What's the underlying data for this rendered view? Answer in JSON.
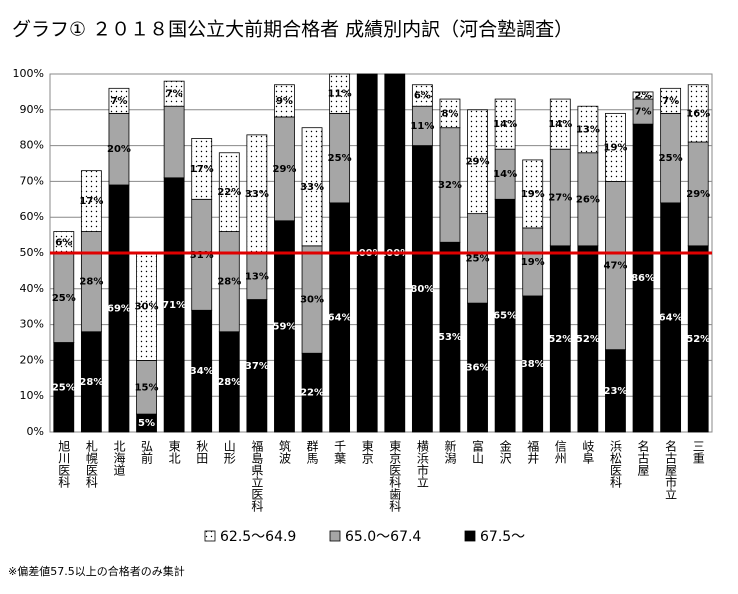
{
  "chart_data": {
    "type": "stacked-bar",
    "title": "グラフ① ２０１８国公立大前期合格者 成績別内訳（河合塾調査）",
    "note": "※偏差値57.5以上の合格者のみ集計",
    "categories": [
      "旭川医科",
      "札幌医科",
      "北海道",
      "弘前",
      "東北",
      "秋田",
      "山形",
      "福島県立医科",
      "筑波",
      "群馬",
      "千葉",
      "東京",
      "東京医科歯科",
      "横浜市立",
      "新潟",
      "富山",
      "金沢",
      "福井",
      "信州",
      "岐阜",
      "浜松医科",
      "名古屋",
      "名古屋市立",
      "三重"
    ],
    "series": [
      {
        "name": "67.5〜",
        "color": "#000000",
        "pattern": "solid",
        "values": [
          25,
          28,
          69,
          5,
          71,
          34,
          28,
          37,
          59,
          22,
          64,
          100,
          100,
          80,
          53,
          36,
          65,
          38,
          52,
          52,
          23,
          86,
          64,
          52
        ],
        "value_labels": [
          "25%",
          "28%",
          "69%",
          "5%",
          "71%",
          "34%",
          "28%",
          "37%",
          "59%",
          "22%",
          "64%",
          "100%",
          "100%",
          "80%",
          "53%",
          "36%",
          "65%",
          "38%",
          "52%",
          "52%",
          "23%",
          "86%",
          "64%",
          "52%"
        ]
      },
      {
        "name": "65.0〜67.4",
        "color": "#a6a6a6",
        "pattern": "solid",
        "values": [
          25,
          28,
          20,
          15,
          20,
          31,
          28,
          13,
          29,
          30,
          25,
          0,
          0,
          11,
          32,
          25,
          14,
          19,
          27,
          26,
          47,
          7,
          25,
          29
        ],
        "value_labels": [
          "25%",
          "28%",
          "20%",
          "15%",
          null,
          "31%",
          "28%",
          "13%",
          "29%",
          "30%",
          "25%",
          null,
          null,
          "11%",
          "32%",
          "25%",
          "14%",
          "19%",
          "27%",
          "26%",
          "47%",
          "7%",
          "25%",
          "29%"
        ]
      },
      {
        "name": "62.5〜64.9",
        "color": "#ffffff",
        "pattern": "dots",
        "values": [
          6,
          17,
          7,
          30,
          7,
          17,
          22,
          33,
          9,
          33,
          11,
          0,
          0,
          6,
          8,
          29,
          14,
          19,
          14,
          13,
          19,
          2,
          7,
          16
        ],
        "value_labels": [
          "6%",
          "17%",
          "7%",
          "30%",
          "7%",
          "17%",
          "22%",
          "33%",
          "9%",
          "33%",
          "11%",
          null,
          null,
          "6%",
          "8%",
          "29%",
          "14%",
          "19%",
          "14%",
          "13%",
          "19%",
          "2%",
          "7%",
          "16%"
        ]
      }
    ],
    "ylim": [
      0,
      100
    ],
    "yticks": [
      {
        "value": 0,
        "label": "0%"
      },
      {
        "value": 10,
        "label": "10%"
      },
      {
        "value": 20,
        "label": "20%"
      },
      {
        "value": 30,
        "label": "30%"
      },
      {
        "value": 40,
        "label": "40%"
      },
      {
        "value": 50,
        "label": "50%"
      },
      {
        "value": 60,
        "label": "60%"
      },
      {
        "value": 70,
        "label": "70%"
      },
      {
        "value": 80,
        "label": "80%"
      },
      {
        "value": 90,
        "label": "90%"
      },
      {
        "value": 100,
        "label": "100%"
      }
    ],
    "grid": true,
    "reference_line": {
      "value": 50,
      "color": "#e00000"
    },
    "legend": "bottom"
  }
}
